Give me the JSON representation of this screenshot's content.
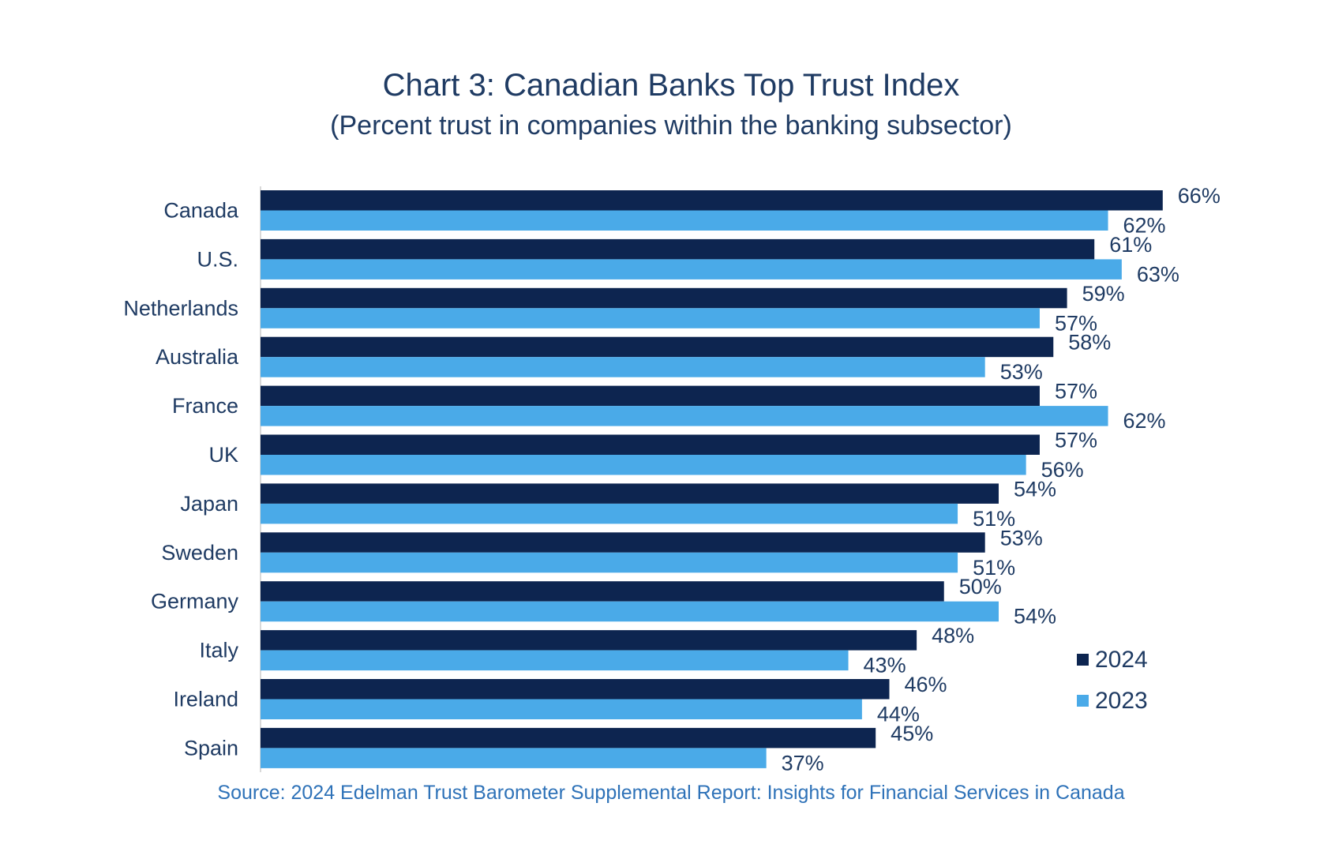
{
  "chart_data": {
    "type": "bar",
    "orientation": "horizontal",
    "title": "Chart 3: Canadian Banks Top Trust Index",
    "subtitle": "(Percent trust in companies within the banking subsector)",
    "categories": [
      "Canada",
      "U.S.",
      "Netherlands",
      "Australia",
      "France",
      "UK",
      "Japan",
      "Sweden",
      "Germany",
      "Italy",
      "Ireland",
      "Spain"
    ],
    "series": [
      {
        "name": "2024",
        "color": "#0d2550",
        "values": [
          66,
          61,
          59,
          58,
          57,
          57,
          54,
          53,
          50,
          48,
          46,
          45
        ],
        "labels": [
          "66%",
          "61%",
          "59%",
          "58%",
          "57%",
          "57%",
          "54%",
          "53%",
          "50%",
          "48%",
          "46%",
          "45%"
        ]
      },
      {
        "name": "2023",
        "color": "#4aaae8",
        "values": [
          62,
          63,
          57,
          53,
          62,
          56,
          51,
          51,
          54,
          43,
          44,
          37
        ],
        "labels": [
          "62%",
          "63%",
          "57%",
          "53%",
          "62%",
          "56%",
          "51%",
          "51%",
          "54%",
          "43%",
          "44%",
          "37%"
        ]
      }
    ],
    "xlim": [
      0,
      70
    ],
    "grid": false,
    "legend_position": "bottom-right",
    "source": "Source: 2024 Edelman Trust Barometer Supplemental Report: Insights for Financial Services in Canada"
  }
}
